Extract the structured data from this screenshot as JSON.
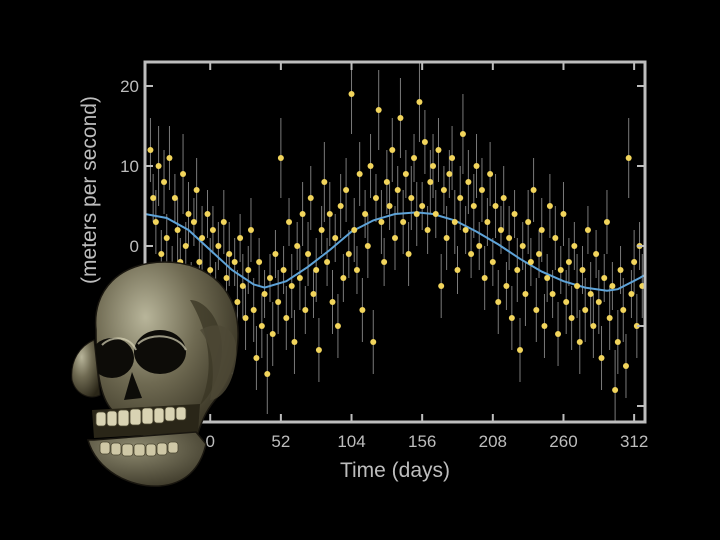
{
  "chart_data": {
    "type": "scatter",
    "title": "",
    "xlabel": "Time (days)",
    "ylabel": "(meters per second)",
    "xlim": [
      -48,
      320
    ],
    "ylim": [
      -22,
      23
    ],
    "xticks": [
      0,
      52,
      104,
      156,
      208,
      260,
      312
    ],
    "yticks": [
      20,
      10,
      0
    ],
    "grid": false,
    "legend": "none",
    "colors": {
      "background": "#000000",
      "frame": "#bdbdbd",
      "points": "#f2d55c",
      "error_bars": "#7a7a7a",
      "fit": "#5ea3d8"
    },
    "fit_curve": {
      "x": [
        -48,
        -32,
        -16,
        0,
        16,
        32,
        40,
        56,
        72,
        88,
        104,
        120,
        136,
        152,
        164,
        180,
        196,
        212,
        228,
        244,
        260,
        276,
        292,
        300,
        316,
        320
      ],
      "y": [
        4.0,
        3.5,
        2.0,
        -0.5,
        -3.0,
        -4.8,
        -5.2,
        -4.4,
        -2.6,
        -0.5,
        1.8,
        3.2,
        4.0,
        4.2,
        4.0,
        3.2,
        1.8,
        0.2,
        -1.6,
        -3.2,
        -4.4,
        -5.2,
        -5.6,
        -5.4,
        -4.0,
        -3.6
      ]
    },
    "points": [
      {
        "x": -44,
        "y": 12,
        "err": 4
      },
      {
        "x": -42,
        "y": 6,
        "err": 3
      },
      {
        "x": -40,
        "y": 3,
        "err": 4
      },
      {
        "x": -38,
        "y": 10,
        "err": 5
      },
      {
        "x": -36,
        "y": -1,
        "err": 3
      },
      {
        "x": -34,
        "y": 8,
        "err": 4
      },
      {
        "x": -32,
        "y": 1,
        "err": 3
      },
      {
        "x": -30,
        "y": 11,
        "err": 4
      },
      {
        "x": -28,
        "y": -4,
        "err": 4
      },
      {
        "x": -26,
        "y": 6,
        "err": 3
      },
      {
        "x": -24,
        "y": 2,
        "err": 4
      },
      {
        "x": -22,
        "y": -2,
        "err": 3
      },
      {
        "x": -20,
        "y": 9,
        "err": 5
      },
      {
        "x": -18,
        "y": 0,
        "err": 3
      },
      {
        "x": -16,
        "y": 4,
        "err": 4
      },
      {
        "x": -14,
        "y": -6,
        "err": 4
      },
      {
        "x": -12,
        "y": 3,
        "err": 3
      },
      {
        "x": -10,
        "y": 7,
        "err": 4
      },
      {
        "x": -8,
        "y": -2,
        "err": 3
      },
      {
        "x": -6,
        "y": 1,
        "err": 4
      },
      {
        "x": -4,
        "y": -8,
        "err": 4
      },
      {
        "x": -2,
        "y": 4,
        "err": 3
      },
      {
        "x": 0,
        "y": -3,
        "err": 4
      },
      {
        "x": 2,
        "y": 2,
        "err": 3
      },
      {
        "x": 4,
        "y": -6,
        "err": 4
      },
      {
        "x": 6,
        "y": 0,
        "err": 3
      },
      {
        "x": 8,
        "y": -10,
        "err": 4
      },
      {
        "x": 10,
        "y": 3,
        "err": 4
      },
      {
        "x": 12,
        "y": -4,
        "err": 3
      },
      {
        "x": 14,
        "y": -1,
        "err": 4
      },
      {
        "x": 16,
        "y": -12,
        "err": 4
      },
      {
        "x": 18,
        "y": -2,
        "err": 3
      },
      {
        "x": 20,
        "y": -7,
        "err": 4
      },
      {
        "x": 22,
        "y": 1,
        "err": 3
      },
      {
        "x": 24,
        "y": -5,
        "err": 4
      },
      {
        "x": 26,
        "y": -9,
        "err": 4
      },
      {
        "x": 28,
        "y": -3,
        "err": 3
      },
      {
        "x": 30,
        "y": 2,
        "err": 4
      },
      {
        "x": 32,
        "y": -8,
        "err": 4
      },
      {
        "x": 34,
        "y": -14,
        "err": 4
      },
      {
        "x": 36,
        "y": -2,
        "err": 3
      },
      {
        "x": 38,
        "y": -10,
        "err": 4
      },
      {
        "x": 40,
        "y": -6,
        "err": 3
      },
      {
        "x": 42,
        "y": -16,
        "err": 5
      },
      {
        "x": 44,
        "y": -4,
        "err": 3
      },
      {
        "x": 46,
        "y": -11,
        "err": 4
      },
      {
        "x": 48,
        "y": -1,
        "err": 3
      },
      {
        "x": 50,
        "y": -7,
        "err": 4
      },
      {
        "x": 52,
        "y": 11,
        "err": 5
      },
      {
        "x": 54,
        "y": -3,
        "err": 3
      },
      {
        "x": 56,
        "y": -9,
        "err": 4
      },
      {
        "x": 58,
        "y": 3,
        "err": 3
      },
      {
        "x": 60,
        "y": -5,
        "err": 4
      },
      {
        "x": 62,
        "y": -12,
        "err": 4
      },
      {
        "x": 64,
        "y": 0,
        "err": 3
      },
      {
        "x": 66,
        "y": -4,
        "err": 4
      },
      {
        "x": 68,
        "y": 4,
        "err": 4
      },
      {
        "x": 70,
        "y": -8,
        "err": 3
      },
      {
        "x": 72,
        "y": -1,
        "err": 4
      },
      {
        "x": 74,
        "y": 6,
        "err": 4
      },
      {
        "x": 76,
        "y": -6,
        "err": 3
      },
      {
        "x": 78,
        "y": -3,
        "err": 4
      },
      {
        "x": 80,
        "y": -13,
        "err": 4
      },
      {
        "x": 82,
        "y": 2,
        "err": 3
      },
      {
        "x": 84,
        "y": 8,
        "err": 5
      },
      {
        "x": 86,
        "y": -2,
        "err": 3
      },
      {
        "x": 88,
        "y": 4,
        "err": 4
      },
      {
        "x": 90,
        "y": -7,
        "err": 4
      },
      {
        "x": 92,
        "y": 1,
        "err": 3
      },
      {
        "x": 94,
        "y": -10,
        "err": 4
      },
      {
        "x": 96,
        "y": 5,
        "err": 4
      },
      {
        "x": 98,
        "y": -4,
        "err": 3
      },
      {
        "x": 100,
        "y": 7,
        "err": 4
      },
      {
        "x": 102,
        "y": -1,
        "err": 3
      },
      {
        "x": 104,
        "y": 19,
        "err": 5
      },
      {
        "x": 106,
        "y": 2,
        "err": 4
      },
      {
        "x": 108,
        "y": -3,
        "err": 3
      },
      {
        "x": 110,
        "y": 9,
        "err": 4
      },
      {
        "x": 112,
        "y": -8,
        "err": 4
      },
      {
        "x": 114,
        "y": 4,
        "err": 3
      },
      {
        "x": 116,
        "y": 0,
        "err": 4
      },
      {
        "x": 118,
        "y": 10,
        "err": 4
      },
      {
        "x": 120,
        "y": -12,
        "err": 4
      },
      {
        "x": 122,
        "y": 6,
        "err": 3
      },
      {
        "x": 124,
        "y": 17,
        "err": 5
      },
      {
        "x": 126,
        "y": 3,
        "err": 4
      },
      {
        "x": 128,
        "y": -2,
        "err": 3
      },
      {
        "x": 130,
        "y": 8,
        "err": 4
      },
      {
        "x": 132,
        "y": 5,
        "err": 3
      },
      {
        "x": 134,
        "y": 12,
        "err": 4
      },
      {
        "x": 136,
        "y": 1,
        "err": 4
      },
      {
        "x": 138,
        "y": 7,
        "err": 3
      },
      {
        "x": 140,
        "y": 16,
        "err": 5
      },
      {
        "x": 142,
        "y": 3,
        "err": 4
      },
      {
        "x": 144,
        "y": 9,
        "err": 3
      },
      {
        "x": 146,
        "y": -1,
        "err": 4
      },
      {
        "x": 148,
        "y": 6,
        "err": 4
      },
      {
        "x": 150,
        "y": 11,
        "err": 3
      },
      {
        "x": 152,
        "y": 4,
        "err": 4
      },
      {
        "x": 154,
        "y": 18,
        "err": 5
      },
      {
        "x": 156,
        "y": 5,
        "err": 3
      },
      {
        "x": 158,
        "y": 13,
        "err": 4
      },
      {
        "x": 160,
        "y": 2,
        "err": 3
      },
      {
        "x": 162,
        "y": 8,
        "err": 4
      },
      {
        "x": 164,
        "y": 10,
        "err": 4
      },
      {
        "x": 166,
        "y": 4,
        "err": 3
      },
      {
        "x": 168,
        "y": 12,
        "err": 4
      },
      {
        "x": 170,
        "y": -5,
        "err": 4
      },
      {
        "x": 172,
        "y": 7,
        "err": 3
      },
      {
        "x": 174,
        "y": 1,
        "err": 4
      },
      {
        "x": 176,
        "y": 9,
        "err": 3
      },
      {
        "x": 178,
        "y": 11,
        "err": 4
      },
      {
        "x": 180,
        "y": 3,
        "err": 4
      },
      {
        "x": 182,
        "y": -3,
        "err": 3
      },
      {
        "x": 184,
        "y": 6,
        "err": 4
      },
      {
        "x": 186,
        "y": 14,
        "err": 5
      },
      {
        "x": 188,
        "y": 2,
        "err": 3
      },
      {
        "x": 190,
        "y": 8,
        "err": 4
      },
      {
        "x": 192,
        "y": -1,
        "err": 3
      },
      {
        "x": 194,
        "y": 5,
        "err": 4
      },
      {
        "x": 196,
        "y": 10,
        "err": 4
      },
      {
        "x": 198,
        "y": 0,
        "err": 3
      },
      {
        "x": 200,
        "y": 7,
        "err": 4
      },
      {
        "x": 202,
        "y": -4,
        "err": 4
      },
      {
        "x": 204,
        "y": 3,
        "err": 3
      },
      {
        "x": 206,
        "y": 9,
        "err": 4
      },
      {
        "x": 208,
        "y": -2,
        "err": 3
      },
      {
        "x": 210,
        "y": 5,
        "err": 4
      },
      {
        "x": 212,
        "y": -7,
        "err": 4
      },
      {
        "x": 214,
        "y": 2,
        "err": 3
      },
      {
        "x": 216,
        "y": 6,
        "err": 4
      },
      {
        "x": 218,
        "y": -5,
        "err": 3
      },
      {
        "x": 220,
        "y": 1,
        "err": 4
      },
      {
        "x": 222,
        "y": -9,
        "err": 4
      },
      {
        "x": 224,
        "y": 4,
        "err": 3
      },
      {
        "x": 226,
        "y": -3,
        "err": 4
      },
      {
        "x": 228,
        "y": -13,
        "err": 4
      },
      {
        "x": 230,
        "y": 0,
        "err": 3
      },
      {
        "x": 232,
        "y": -6,
        "err": 4
      },
      {
        "x": 234,
        "y": 3,
        "err": 4
      },
      {
        "x": 236,
        "y": -2,
        "err": 3
      },
      {
        "x": 238,
        "y": 7,
        "err": 4
      },
      {
        "x": 240,
        "y": -8,
        "err": 4
      },
      {
        "x": 242,
        "y": -1,
        "err": 3
      },
      {
        "x": 244,
        "y": 2,
        "err": 4
      },
      {
        "x": 246,
        "y": -10,
        "err": 4
      },
      {
        "x": 248,
        "y": -4,
        "err": 3
      },
      {
        "x": 250,
        "y": 5,
        "err": 4
      },
      {
        "x": 252,
        "y": -6,
        "err": 3
      },
      {
        "x": 254,
        "y": 1,
        "err": 4
      },
      {
        "x": 256,
        "y": -11,
        "err": 4
      },
      {
        "x": 258,
        "y": -3,
        "err": 3
      },
      {
        "x": 260,
        "y": 4,
        "err": 4
      },
      {
        "x": 262,
        "y": -7,
        "err": 4
      },
      {
        "x": 264,
        "y": -2,
        "err": 3
      },
      {
        "x": 266,
        "y": -9,
        "err": 4
      },
      {
        "x": 268,
        "y": 0,
        "err": 3
      },
      {
        "x": 270,
        "y": -5,
        "err": 4
      },
      {
        "x": 272,
        "y": -12,
        "err": 4
      },
      {
        "x": 274,
        "y": -3,
        "err": 3
      },
      {
        "x": 276,
        "y": -8,
        "err": 4
      },
      {
        "x": 278,
        "y": 2,
        "err": 3
      },
      {
        "x": 280,
        "y": -6,
        "err": 4
      },
      {
        "x": 282,
        "y": -10,
        "err": 4
      },
      {
        "x": 284,
        "y": -1,
        "err": 3
      },
      {
        "x": 286,
        "y": -7,
        "err": 4
      },
      {
        "x": 288,
        "y": -14,
        "err": 4
      },
      {
        "x": 290,
        "y": -4,
        "err": 3
      },
      {
        "x": 292,
        "y": 3,
        "err": 4
      },
      {
        "x": 294,
        "y": -9,
        "err": 4
      },
      {
        "x": 296,
        "y": -5,
        "err": 3
      },
      {
        "x": 298,
        "y": -18,
        "err": 5
      },
      {
        "x": 300,
        "y": -12,
        "err": 4
      },
      {
        "x": 302,
        "y": -3,
        "err": 3
      },
      {
        "x": 304,
        "y": -8,
        "err": 4
      },
      {
        "x": 306,
        "y": -15,
        "err": 4
      },
      {
        "x": 308,
        "y": 11,
        "err": 5
      },
      {
        "x": 310,
        "y": -6,
        "err": 3
      },
      {
        "x": 312,
        "y": -2,
        "err": 4
      },
      {
        "x": 314,
        "y": -10,
        "err": 4
      },
      {
        "x": 316,
        "y": 0,
        "err": 3
      },
      {
        "x": 318,
        "y": -5,
        "err": 4
      }
    ]
  }
}
